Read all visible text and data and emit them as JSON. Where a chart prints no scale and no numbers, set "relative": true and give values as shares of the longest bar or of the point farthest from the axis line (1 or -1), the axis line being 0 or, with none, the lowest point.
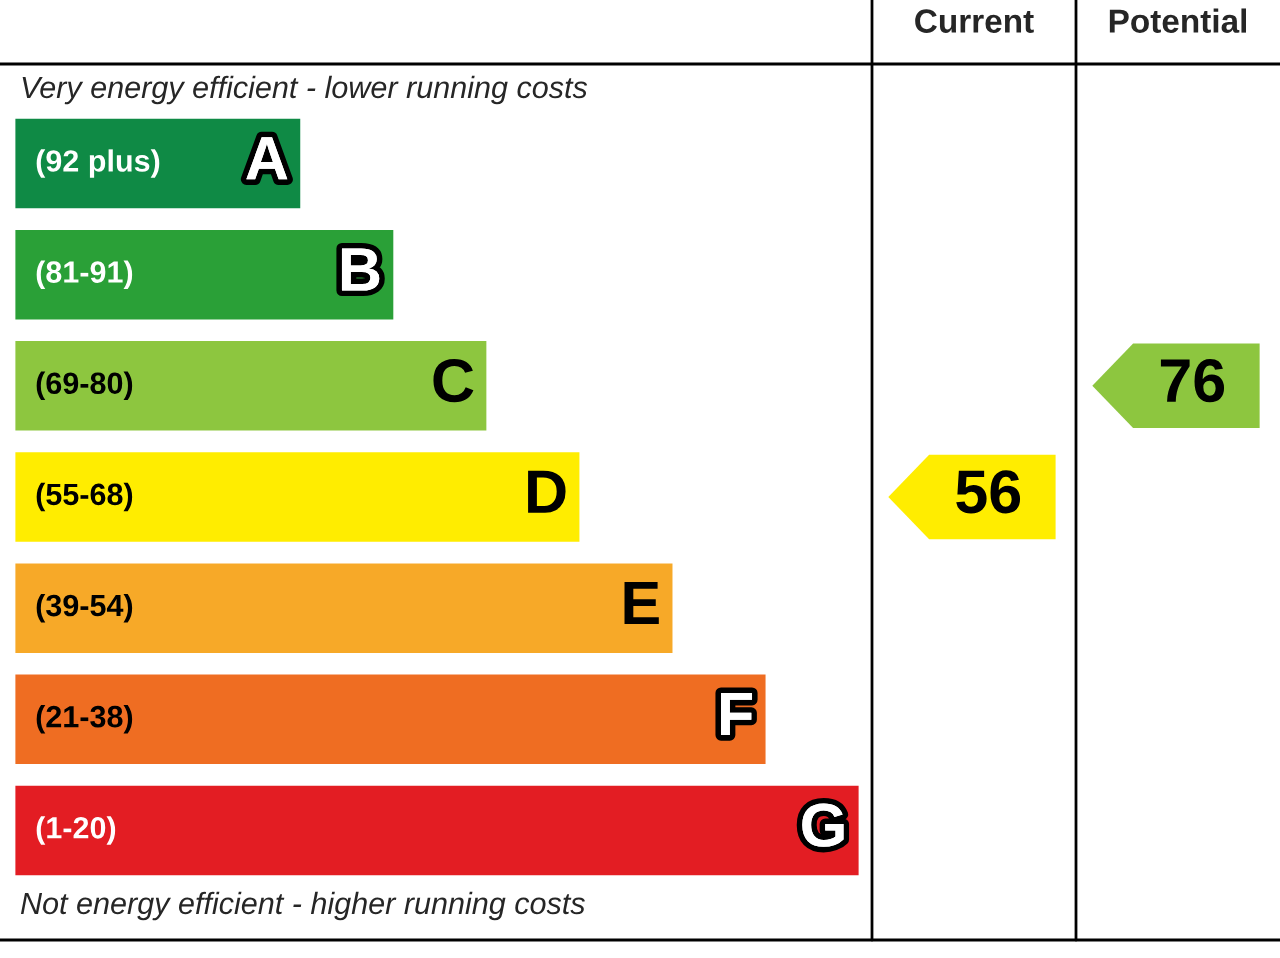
{
  "chart_data": {
    "type": "bar",
    "orientation": "horizontal",
    "relative": true,
    "categories": [
      "A",
      "B",
      "C",
      "D",
      "E",
      "F",
      "G"
    ],
    "values": [
      0.34,
      0.45,
      0.56,
      0.67,
      0.78,
      0.89,
      1
    ],
    "colors": [
      "#0f8a45",
      "#2aa037",
      "#8dc63f",
      "#ffed00",
      "#f7a928",
      "#ef6d22",
      "#e31d23"
    ],
    "annotations": [
      "Very energy efficient - lower running costs",
      "Not energy efficient - higher running costs",
      "Current",
      "Potential",
      "56",
      "76",
      "(92 plus)",
      "(81-91)",
      "(69-80)",
      "(55-68)",
      "(39-54)",
      "(21-38)",
      "(1-20)"
    ]
  }
}
